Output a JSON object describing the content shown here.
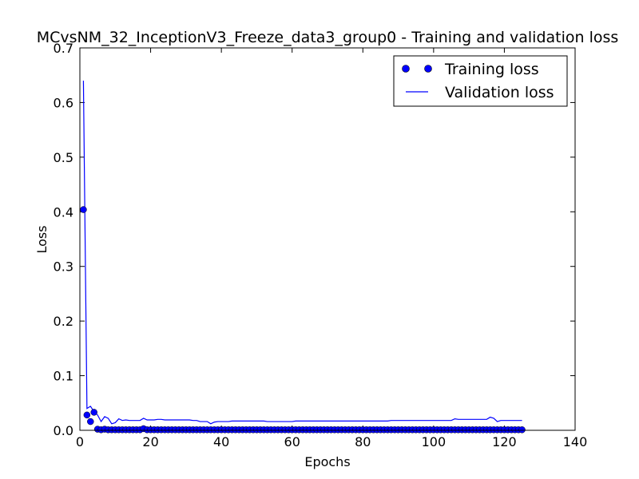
{
  "chart_data": {
    "type": "line",
    "title": "MCvsNM_32_InceptionV3_Freeze_data3_group0 - Training and validation loss",
    "xlabel": "Epochs",
    "ylabel": "Loss",
    "xlim": [
      0,
      140
    ],
    "ylim": [
      0,
      0.7
    ],
    "xticks": [
      "0",
      "20",
      "40",
      "60",
      "80",
      "100",
      "120",
      "140"
    ],
    "yticks": [
      "0.0",
      "0.1",
      "0.2",
      "0.3",
      "0.4",
      "0.5",
      "0.6",
      "0.7"
    ],
    "grid": false,
    "legend_position": "upper-right",
    "series": [
      {
        "name": "Training loss",
        "style": "markers",
        "color": "#0000ff",
        "x": [
          1,
          2,
          3,
          4,
          5,
          6,
          7,
          8,
          9,
          10,
          11,
          12,
          13,
          14,
          15,
          16,
          17,
          18,
          19,
          20,
          21,
          22,
          23,
          24,
          25,
          26,
          27,
          28,
          29,
          30,
          31,
          32,
          33,
          34,
          35,
          36,
          37,
          38,
          39,
          40,
          41,
          42,
          43,
          44,
          45,
          46,
          47,
          48,
          49,
          50,
          51,
          52,
          53,
          54,
          55,
          56,
          57,
          58,
          59,
          60,
          61,
          62,
          63,
          64,
          65,
          66,
          67,
          68,
          69,
          70,
          71,
          72,
          73,
          74,
          75,
          76,
          77,
          78,
          79,
          80,
          81,
          82,
          83,
          84,
          85,
          86,
          87,
          88,
          89,
          90,
          91,
          92,
          93,
          94,
          95,
          96,
          97,
          98,
          99,
          100,
          101,
          102,
          103,
          104,
          105,
          106,
          107,
          108,
          109,
          110,
          111,
          112,
          113,
          114,
          115,
          116,
          117,
          118,
          119,
          120,
          121,
          122,
          123,
          124,
          125
        ],
        "y": [
          0.404,
          0.028,
          0.016,
          0.033,
          0.002,
          0.001,
          0.002,
          0.001,
          0.001,
          0.001,
          0.001,
          0.001,
          0.001,
          0.001,
          0.001,
          0.001,
          0.001,
          0.003,
          0.001,
          0.001,
          0.001,
          0.001,
          0.001,
          0.001,
          0.001,
          0.001,
          0.001,
          0.001,
          0.001,
          0.001,
          0.001,
          0.001,
          0.001,
          0.001,
          0.001,
          0.001,
          0.001,
          0.001,
          0.001,
          0.001,
          0.001,
          0.001,
          0.001,
          0.001,
          0.001,
          0.001,
          0.001,
          0.001,
          0.001,
          0.001,
          0.001,
          0.001,
          0.001,
          0.001,
          0.001,
          0.001,
          0.001,
          0.001,
          0.001,
          0.001,
          0.001,
          0.001,
          0.001,
          0.001,
          0.001,
          0.001,
          0.001,
          0.001,
          0.001,
          0.001,
          0.001,
          0.001,
          0.001,
          0.001,
          0.001,
          0.001,
          0.001,
          0.001,
          0.001,
          0.001,
          0.001,
          0.001,
          0.001,
          0.001,
          0.001,
          0.001,
          0.001,
          0.001,
          0.001,
          0.001,
          0.001,
          0.001,
          0.001,
          0.001,
          0.001,
          0.001,
          0.001,
          0.001,
          0.001,
          0.001,
          0.001,
          0.001,
          0.001,
          0.001,
          0.001,
          0.001,
          0.001,
          0.001,
          0.001,
          0.001,
          0.001,
          0.001,
          0.001,
          0.001,
          0.001,
          0.001,
          0.001,
          0.001,
          0.001,
          0.001,
          0.001,
          0.001,
          0.001,
          0.001,
          0.001
        ]
      },
      {
        "name": "Validation loss",
        "style": "line",
        "color": "#0000ff",
        "x": [
          1,
          2,
          3,
          4,
          5,
          6,
          7,
          8,
          9,
          10,
          11,
          12,
          13,
          14,
          15,
          16,
          17,
          18,
          19,
          20,
          21,
          22,
          23,
          24,
          25,
          26,
          27,
          28,
          29,
          30,
          31,
          32,
          33,
          34,
          35,
          36,
          37,
          38,
          39,
          40,
          41,
          42,
          43,
          44,
          45,
          46,
          47,
          48,
          49,
          50,
          51,
          52,
          53,
          54,
          55,
          56,
          57,
          58,
          59,
          60,
          61,
          62,
          63,
          64,
          65,
          66,
          67,
          68,
          69,
          70,
          71,
          72,
          73,
          74,
          75,
          76,
          77,
          78,
          79,
          80,
          81,
          82,
          83,
          84,
          85,
          86,
          87,
          88,
          89,
          90,
          91,
          92,
          93,
          94,
          95,
          96,
          97,
          98,
          99,
          100,
          101,
          102,
          103,
          104,
          105,
          106,
          107,
          108,
          109,
          110,
          111,
          112,
          113,
          114,
          115,
          116,
          117,
          118,
          119,
          120,
          121,
          122,
          123,
          124,
          125
        ],
        "y": [
          0.64,
          0.04,
          0.044,
          0.034,
          0.028,
          0.016,
          0.025,
          0.022,
          0.012,
          0.014,
          0.021,
          0.018,
          0.019,
          0.018,
          0.018,
          0.018,
          0.018,
          0.022,
          0.019,
          0.019,
          0.019,
          0.02,
          0.02,
          0.019,
          0.019,
          0.019,
          0.019,
          0.019,
          0.019,
          0.019,
          0.019,
          0.018,
          0.018,
          0.016,
          0.016,
          0.016,
          0.012,
          0.015,
          0.016,
          0.016,
          0.016,
          0.016,
          0.017,
          0.017,
          0.017,
          0.017,
          0.017,
          0.017,
          0.017,
          0.017,
          0.017,
          0.017,
          0.016,
          0.016,
          0.016,
          0.016,
          0.016,
          0.016,
          0.016,
          0.016,
          0.017,
          0.017,
          0.017,
          0.017,
          0.017,
          0.017,
          0.017,
          0.017,
          0.017,
          0.017,
          0.017,
          0.017,
          0.017,
          0.017,
          0.017,
          0.017,
          0.017,
          0.017,
          0.017,
          0.017,
          0.017,
          0.017,
          0.017,
          0.017,
          0.017,
          0.017,
          0.017,
          0.018,
          0.018,
          0.018,
          0.018,
          0.018,
          0.018,
          0.018,
          0.018,
          0.018,
          0.018,
          0.018,
          0.018,
          0.018,
          0.018,
          0.018,
          0.018,
          0.018,
          0.018,
          0.021,
          0.02,
          0.02,
          0.02,
          0.02,
          0.02,
          0.02,
          0.02,
          0.02,
          0.02,
          0.024,
          0.022,
          0.016,
          0.018,
          0.018,
          0.018,
          0.018,
          0.018,
          0.018,
          0.018
        ]
      }
    ]
  }
}
